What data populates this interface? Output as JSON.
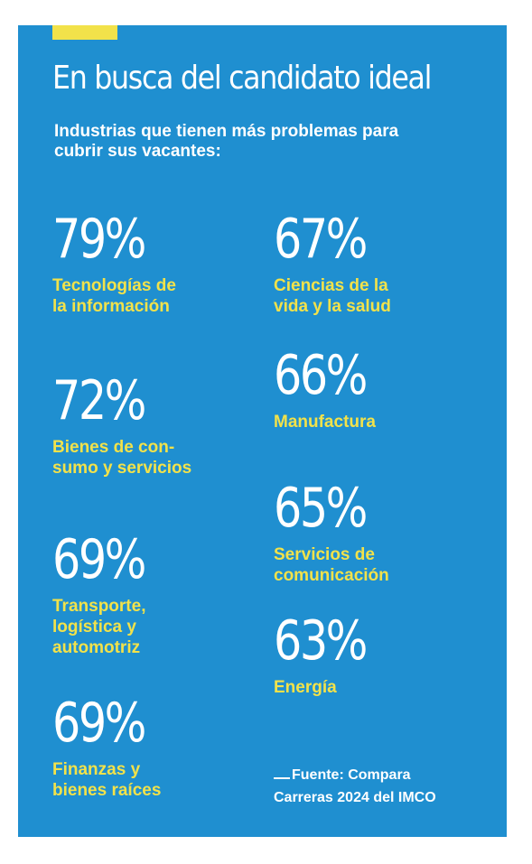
{
  "header": {
    "title": "En busca del candidato ideal",
    "subtitle": "Industrias que tienen más problemas para cubrir sus vacantes:"
  },
  "stats": [
    {
      "percent": "79%",
      "label": "Tecnologías de\nla información"
    },
    {
      "percent": "67%",
      "label": "Ciencias de la\nvida y la salud"
    },
    {
      "percent": "72%",
      "label": "Bienes de con-\nsumo y servicios"
    },
    {
      "percent": "66%",
      "label": "Manufactura"
    },
    {
      "percent": "65%",
      "label": "Servicios de\ncomunicación"
    },
    {
      "percent": "69%",
      "label": "Transporte,\nlogística y\nautomotriz"
    },
    {
      "percent": "63%",
      "label": "Energía"
    },
    {
      "percent": "69%",
      "label": "Finanzas y\nbienes raíces"
    }
  ],
  "source": {
    "line1": "Fuente: Compara",
    "line2": "Carreras 2024 del IMCO"
  },
  "colors": {
    "background": "#1f8fd0",
    "accent": "#f2e24a",
    "text": "#ffffff"
  }
}
